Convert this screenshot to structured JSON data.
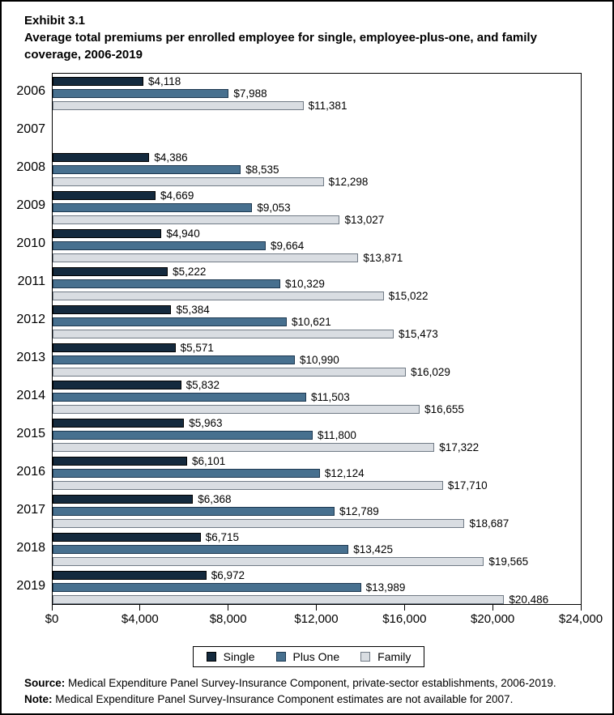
{
  "title": {
    "exhibit": "Exhibit 3.1",
    "text": "Average total premiums per enrolled employee for single, employee-plus-one, and family coverage, 2006-2019"
  },
  "chart_data": {
    "type": "bar",
    "orientation": "horizontal",
    "categories": [
      "2006",
      "2007",
      "2008",
      "2009",
      "2010",
      "2011",
      "2012",
      "2013",
      "2014",
      "2015",
      "2016",
      "2017",
      "2018",
      "2019"
    ],
    "series": [
      {
        "name": "Single",
        "fill": "#142a3e",
        "border": "#000000",
        "values": [
          4118,
          null,
          4386,
          4669,
          4940,
          5222,
          5384,
          5571,
          5832,
          5963,
          6101,
          6368,
          6715,
          6972
        ]
      },
      {
        "name": "Plus One",
        "fill": "#47708f",
        "border": "#1d3850",
        "values": [
          7988,
          null,
          8535,
          9053,
          9664,
          10329,
          10621,
          10990,
          11503,
          11800,
          12124,
          12789,
          13425,
          13989
        ]
      },
      {
        "name": "Family",
        "fill": "#d9dde2",
        "border": "#707a85",
        "values": [
          11381,
          null,
          12298,
          13027,
          13871,
          15022,
          15473,
          16029,
          16655,
          17322,
          17710,
          18687,
          19565,
          20486
        ]
      }
    ],
    "xlim": [
      0,
      24000
    ],
    "x_tick_values": [
      0,
      4000,
      8000,
      12000,
      16000,
      20000,
      24000
    ],
    "x_tick_labels": [
      "$0",
      "$4,000",
      "$8,000",
      "$12,000",
      "$16,000",
      "$20,000",
      "$24,000"
    ],
    "value_label_prefix": "$",
    "grid": false,
    "legend_position": "bottom"
  },
  "legend": {
    "items": [
      {
        "label": "Single",
        "fill": "#142a3e",
        "border": "#000000"
      },
      {
        "label": "Plus One",
        "fill": "#47708f",
        "border": "#1d3850"
      },
      {
        "label": "Family",
        "fill": "#d9dde2",
        "border": "#707a85"
      }
    ]
  },
  "footer": {
    "source_label": "Source:",
    "source_text": " Medical Expenditure Panel Survey-Insurance Component, private-sector establishments, 2006-2019.",
    "note_label": "Note:",
    "note_text": " Medical Expenditure Panel Survey-Insurance Component estimates are not available for 2007."
  }
}
